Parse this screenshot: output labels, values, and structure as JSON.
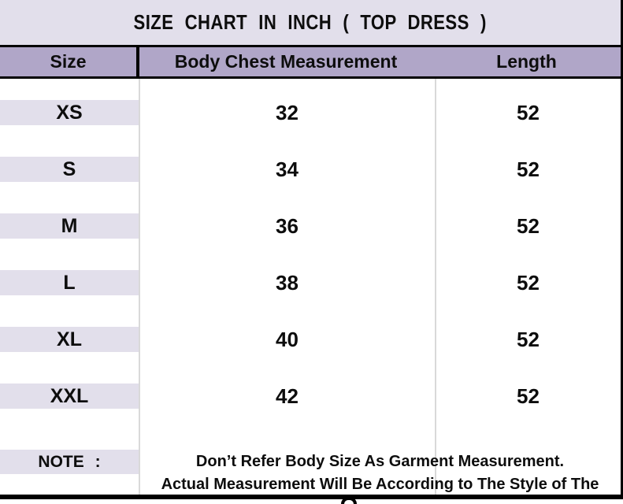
{
  "title": "SIZE CHART IN INCH ( TOP DRESS )",
  "header": {
    "size": "Size",
    "chest": "Body Chest Measurement",
    "length": "Length"
  },
  "rows": [
    {
      "size": "XS",
      "chest": "32",
      "length": "52"
    },
    {
      "size": "S",
      "chest": "34",
      "length": "52"
    },
    {
      "size": "M",
      "chest": "36",
      "length": "52"
    },
    {
      "size": "L",
      "chest": "38",
      "length": "52"
    },
    {
      "size": "XL",
      "chest": "40",
      "length": "52"
    },
    {
      "size": "XXL",
      "chest": "42",
      "length": "52"
    }
  ],
  "note": {
    "label": "NOTE :",
    "line1": "Don’t Refer Body Size As Garment Measurement.",
    "line2": "Actual Measurement Will Be According to The Style of The"
  },
  "colors": {
    "band_bg": "#e2dfeb",
    "header_bg": "#b0a6c8",
    "grid_line": "#d9d9d9",
    "border": "#000000",
    "text": "#0d0d0d"
  }
}
